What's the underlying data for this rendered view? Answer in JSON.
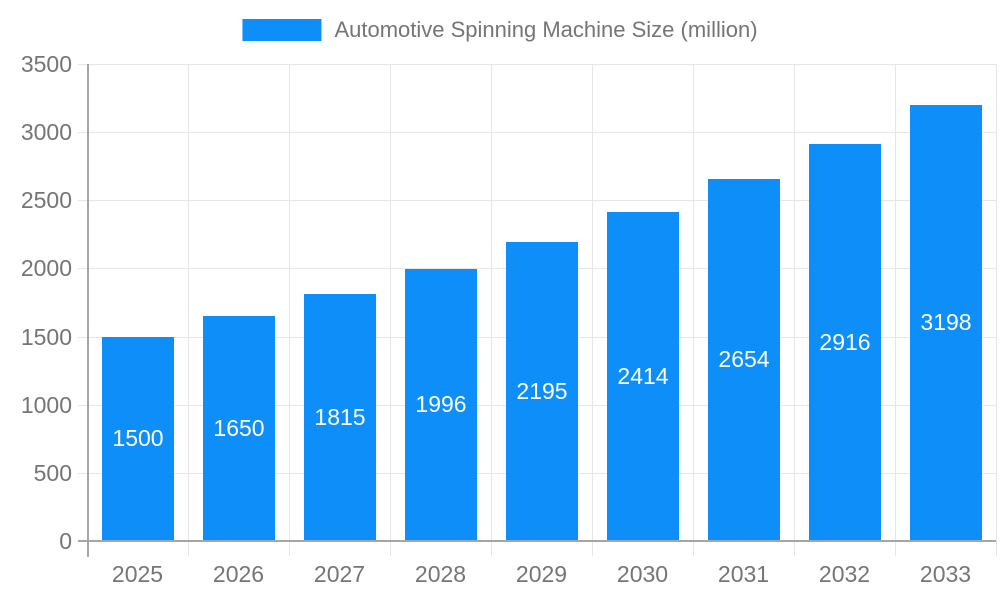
{
  "chart_data": {
    "type": "bar",
    "title": "Automotive Spinning Machine Size (million)",
    "categories": [
      "2025",
      "2026",
      "2027",
      "2028",
      "2029",
      "2030",
      "2031",
      "2032",
      "2033"
    ],
    "values": [
      1500,
      1650,
      1815,
      1996,
      2195,
      2414,
      2654,
      2916,
      3198
    ],
    "xlabel": "",
    "ylabel": "",
    "ylim": [
      0,
      3500
    ],
    "yticks": [
      0,
      500,
      1000,
      1500,
      2000,
      2500,
      3000,
      3500
    ],
    "grid": true,
    "legend_position": "top-center",
    "value_labels": "inside-center"
  },
  "colors": {
    "bar": "#0d8ef8",
    "bar_label": "#ffffff",
    "axis": "#a6a6a6",
    "grid": "#e6e6e6",
    "label": "#757575",
    "background": "#ffffff"
  }
}
